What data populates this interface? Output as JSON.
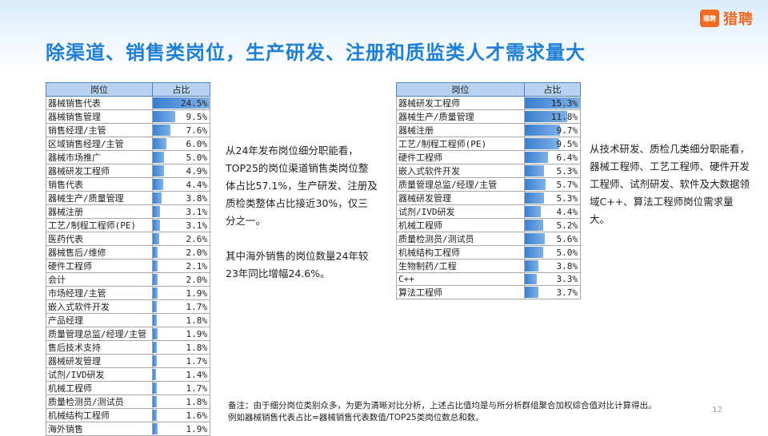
{
  "logo": {
    "icon_text": "猎聘",
    "text": "猎聘"
  },
  "title": "除渠道、销售类岗位，生产研发、注册和质监类人才需求量大",
  "table1": {
    "headers": [
      "岗位",
      "占比"
    ],
    "rows": [
      {
        "name": "器械销售代表",
        "value": "24.5%",
        "pct": 24.5
      },
      {
        "name": "器械销售管理",
        "value": "9.5%",
        "pct": 9.5
      },
      {
        "name": "销售经理/主管",
        "value": "7.6%",
        "pct": 7.6
      },
      {
        "name": "区域销售经理/主管",
        "value": "6.0%",
        "pct": 6.0
      },
      {
        "name": "器械市场推广",
        "value": "5.0%",
        "pct": 5.0
      },
      {
        "name": "器械研发工程师",
        "value": "4.9%",
        "pct": 4.9
      },
      {
        "name": "销售代表",
        "value": "4.4%",
        "pct": 4.4
      },
      {
        "name": "器械生产/质量管理",
        "value": "3.8%",
        "pct": 3.8
      },
      {
        "name": "器械注册",
        "value": "3.1%",
        "pct": 3.1
      },
      {
        "name": "工艺/制程工程师(PE)",
        "value": "3.1%",
        "pct": 3.1
      },
      {
        "name": "医药代表",
        "value": "2.6%",
        "pct": 2.6
      },
      {
        "name": "器械售后/维修",
        "value": "2.0%",
        "pct": 2.0
      },
      {
        "name": "硬件工程师",
        "value": "2.1%",
        "pct": 2.1
      },
      {
        "name": "会计",
        "value": "2.0%",
        "pct": 2.0
      },
      {
        "name": "市场经理/主管",
        "value": "1.9%",
        "pct": 1.9
      },
      {
        "name": "嵌入式软件开发",
        "value": "1.7%",
        "pct": 1.7
      },
      {
        "name": "产品经理",
        "value": "1.8%",
        "pct": 1.8
      },
      {
        "name": "质量管理总监/经理/主管",
        "value": "1.9%",
        "pct": 1.9
      },
      {
        "name": "售后技术支持",
        "value": "1.8%",
        "pct": 1.8
      },
      {
        "name": "器械研发管理",
        "value": "1.7%",
        "pct": 1.7
      },
      {
        "name": "试剂/IVD研发",
        "value": "1.4%",
        "pct": 1.4
      },
      {
        "name": "机械工程师",
        "value": "1.7%",
        "pct": 1.7
      },
      {
        "name": "质量检测员/测试员",
        "value": "1.8%",
        "pct": 1.8
      },
      {
        "name": "机械结构工程师",
        "value": "1.6%",
        "pct": 1.6
      },
      {
        "name": "海外销售",
        "value": "1.9%",
        "pct": 1.9
      }
    ]
  },
  "table2": {
    "headers": [
      "岗位",
      "占比"
    ],
    "rows": [
      {
        "name": "器械研发工程师",
        "value": "15.3%",
        "pct": 15.3
      },
      {
        "name": "器械生产/质量管理",
        "value": "11.8%",
        "pct": 11.8
      },
      {
        "name": "器械注册",
        "value": "9.7%",
        "pct": 9.7
      },
      {
        "name": "工艺/制程工程师(PE)",
        "value": "9.5%",
        "pct": 9.5
      },
      {
        "name": "硬件工程师",
        "value": "6.4%",
        "pct": 6.4
      },
      {
        "name": "嵌入式软件开发",
        "value": "5.3%",
        "pct": 5.3
      },
      {
        "name": "质量管理总监/经理/主管",
        "value": "5.7%",
        "pct": 5.7
      },
      {
        "name": "器械研发管理",
        "value": "5.3%",
        "pct": 5.3
      },
      {
        "name": "试剂/IVD研发",
        "value": "4.4%",
        "pct": 4.4
      },
      {
        "name": "机械工程师",
        "value": "5.2%",
        "pct": 5.2
      },
      {
        "name": "质量检测员/测试员",
        "value": "5.6%",
        "pct": 5.6
      },
      {
        "name": "机械结构工程师",
        "value": "5.0%",
        "pct": 5.0
      },
      {
        "name": "生物制药/工程",
        "value": "3.8%",
        "pct": 3.8
      },
      {
        "name": "C++",
        "value": "3.3%",
        "pct": 3.3
      },
      {
        "name": "算法工程师",
        "value": "3.7%",
        "pct": 3.7
      }
    ]
  },
  "text1": {
    "para1": "从24年发布岗位细分职能看，TOP25的岗位渠道销售类岗位整体占比57.1%，生产研发、注册及质检类整体占比接近30%，仅三分之一。",
    "para2": "其中海外销售的岗位数量24年较23年同比增幅24.6%。"
  },
  "text2": "从技术研发、质检几类细分职能看，器械工程师、工艺工程师、硬件开发工程师、试剂研发、软件及大数据领域C++、算法工程师岗位需求量大。",
  "note": {
    "line1": "备注：由于细分岗位类别众多，为更为清晰对比分析，上述占比值均是与所分析群组聚合加权综合值对比计算得出。",
    "line2": "例如器械销售代表占比=器械销售代表数值/TOP25类岗位数总和数。"
  },
  "page_number": "12"
}
